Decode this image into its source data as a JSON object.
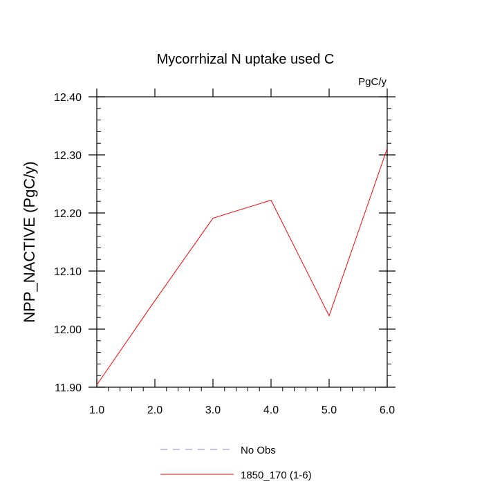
{
  "chart_data": {
    "type": "line",
    "title": "Mycorrhizal N uptake used C",
    "units": "PgC/y",
    "ylabel": "NPP_NACTIVE  (PgC/y)",
    "xlabel": "",
    "xlim": [
      1.0,
      6.0
    ],
    "ylim": [
      11.9,
      12.4
    ],
    "x_ticks": [
      1.0,
      2.0,
      3.0,
      4.0,
      5.0,
      6.0
    ],
    "x_tick_labels": [
      "1.0",
      "2.0",
      "3.0",
      "4.0",
      "5.0",
      "6.0"
    ],
    "y_ticks": [
      11.9,
      12.0,
      12.1,
      12.2,
      12.3,
      12.4
    ],
    "y_tick_labels": [
      "11.90",
      "12.00",
      "12.10",
      "12.20",
      "12.30",
      "12.40"
    ],
    "series": [
      {
        "name": "1850_170 (1-6)",
        "color": "#ff0000",
        "dash": "solid",
        "x": [
          1,
          2,
          3,
          4,
          5,
          6
        ],
        "values": [
          11.904,
          12.049,
          12.191,
          12.222,
          12.023,
          12.311
        ]
      }
    ],
    "legend": [
      {
        "label": "No Obs",
        "color": "#8080ff",
        "dash": "dashed"
      },
      {
        "label": "1850_170 (1-6)",
        "color": "#ff0000",
        "dash": "solid"
      }
    ],
    "legend_position": "bottom-center"
  }
}
